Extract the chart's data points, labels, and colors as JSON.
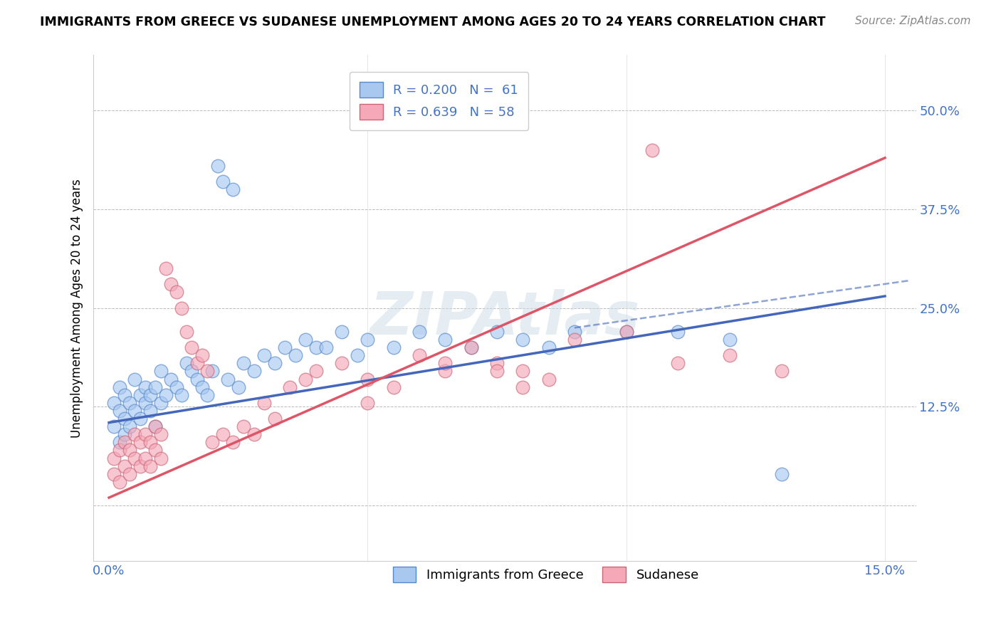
{
  "title": "IMMIGRANTS FROM GREECE VS SUDANESE UNEMPLOYMENT AMONG AGES 20 TO 24 YEARS CORRELATION CHART",
  "source": "Source: ZipAtlas.com",
  "ylabel": "Unemployment Among Ages 20 to 24 years",
  "blue_color": "#A8C8F0",
  "pink_color": "#F4A8B8",
  "blue_edge_color": "#5588CC",
  "pink_edge_color": "#CC6677",
  "blue_line_color": "#4466BB",
  "pink_line_color": "#DD5566",
  "tick_color": "#4472C4",
  "legend_text_color": "#4472C4",
  "watermark_color": "#CCDDEE",
  "ytick_positions": [
    0.0,
    0.125,
    0.25,
    0.375,
    0.5
  ],
  "ytick_labels": [
    "",
    "12.5%",
    "25.0%",
    "37.5%",
    "50.0%"
  ],
  "xtick_positions": [
    0.0,
    0.05,
    0.1,
    0.15
  ],
  "xtick_labels": [
    "0.0%",
    "",
    "",
    "15.0%"
  ],
  "blue_x": [
    0.001,
    0.001,
    0.002,
    0.002,
    0.002,
    0.003,
    0.003,
    0.003,
    0.004,
    0.004,
    0.005,
    0.005,
    0.006,
    0.006,
    0.007,
    0.007,
    0.008,
    0.008,
    0.009,
    0.009,
    0.01,
    0.01,
    0.011,
    0.012,
    0.013,
    0.014,
    0.015,
    0.016,
    0.017,
    0.018,
    0.019,
    0.02,
    0.021,
    0.022,
    0.023,
    0.024,
    0.025,
    0.026,
    0.028,
    0.03,
    0.032,
    0.034,
    0.036,
    0.038,
    0.04,
    0.042,
    0.045,
    0.048,
    0.05,
    0.055,
    0.06,
    0.065,
    0.07,
    0.075,
    0.08,
    0.085,
    0.09,
    0.1,
    0.11,
    0.12,
    0.13
  ],
  "blue_y": [
    0.1,
    0.13,
    0.08,
    0.12,
    0.15,
    0.09,
    0.14,
    0.11,
    0.1,
    0.13,
    0.12,
    0.16,
    0.11,
    0.14,
    0.13,
    0.15,
    0.12,
    0.14,
    0.1,
    0.15,
    0.13,
    0.17,
    0.14,
    0.16,
    0.15,
    0.14,
    0.18,
    0.17,
    0.16,
    0.15,
    0.14,
    0.17,
    0.43,
    0.41,
    0.16,
    0.4,
    0.15,
    0.18,
    0.17,
    0.19,
    0.18,
    0.2,
    0.19,
    0.21,
    0.2,
    0.2,
    0.22,
    0.19,
    0.21,
    0.2,
    0.22,
    0.21,
    0.2,
    0.22,
    0.21,
    0.2,
    0.22,
    0.22,
    0.22,
    0.21,
    0.04
  ],
  "pink_x": [
    0.001,
    0.001,
    0.002,
    0.002,
    0.003,
    0.003,
    0.004,
    0.004,
    0.005,
    0.005,
    0.006,
    0.006,
    0.007,
    0.007,
    0.008,
    0.008,
    0.009,
    0.009,
    0.01,
    0.01,
    0.011,
    0.012,
    0.013,
    0.014,
    0.015,
    0.016,
    0.017,
    0.018,
    0.019,
    0.02,
    0.022,
    0.024,
    0.026,
    0.028,
    0.03,
    0.032,
    0.035,
    0.038,
    0.04,
    0.045,
    0.05,
    0.055,
    0.06,
    0.065,
    0.07,
    0.075,
    0.08,
    0.09,
    0.1,
    0.105,
    0.11,
    0.12,
    0.13,
    0.085,
    0.065,
    0.05,
    0.08,
    0.075
  ],
  "pink_y": [
    0.04,
    0.06,
    0.03,
    0.07,
    0.05,
    0.08,
    0.04,
    0.07,
    0.06,
    0.09,
    0.05,
    0.08,
    0.06,
    0.09,
    0.05,
    0.08,
    0.07,
    0.1,
    0.06,
    0.09,
    0.3,
    0.28,
    0.27,
    0.25,
    0.22,
    0.2,
    0.18,
    0.19,
    0.17,
    0.08,
    0.09,
    0.08,
    0.1,
    0.09,
    0.13,
    0.11,
    0.15,
    0.16,
    0.17,
    0.18,
    0.16,
    0.15,
    0.19,
    0.17,
    0.2,
    0.18,
    0.17,
    0.21,
    0.22,
    0.45,
    0.18,
    0.19,
    0.17,
    0.16,
    0.18,
    0.13,
    0.15,
    0.17
  ],
  "blue_line_x": [
    0.0,
    0.15
  ],
  "blue_line_y": [
    0.105,
    0.265
  ],
  "pink_line_x": [
    0.0,
    0.15
  ],
  "pink_line_y": [
    0.01,
    0.44
  ]
}
